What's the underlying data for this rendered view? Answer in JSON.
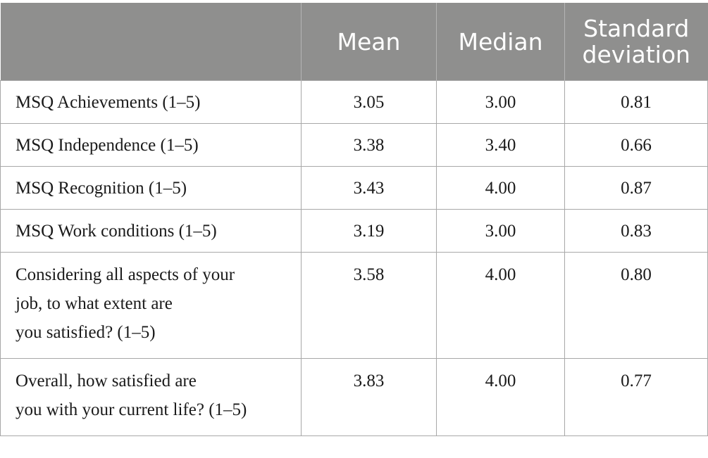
{
  "table": {
    "headers": [
      "",
      "Mean",
      "Median",
      "Standard\ndeviation"
    ],
    "header_bg": "#8f8f8e",
    "rows": [
      {
        "label": "MSQ Achievements (1–5)",
        "mean": "3.05",
        "median": "3.00",
        "sd": "0.81"
      },
      {
        "label": "MSQ Independence (1–5)",
        "mean": "3.38",
        "median": "3.40",
        "sd": "0.66"
      },
      {
        "label": "MSQ Recognition (1–5)",
        "mean": "3.43",
        "median": "4.00",
        "sd": "0.87"
      },
      {
        "label": "MSQ Work conditions (1–5)",
        "mean": "3.19",
        "median": "3.00",
        "sd": "0.83"
      },
      {
        "label_lines": [
          "Considering all aspects of your",
          "job, to what extent are",
          "you satisfied? (1–5)"
        ],
        "mean": "3.58",
        "median": "4.00",
        "sd": "0.80"
      },
      {
        "label_lines": [
          "Overall, how satisfied are",
          "you with your current life? (1–5)"
        ],
        "mean": "3.83",
        "median": "4.00",
        "sd": "0.77"
      }
    ]
  }
}
